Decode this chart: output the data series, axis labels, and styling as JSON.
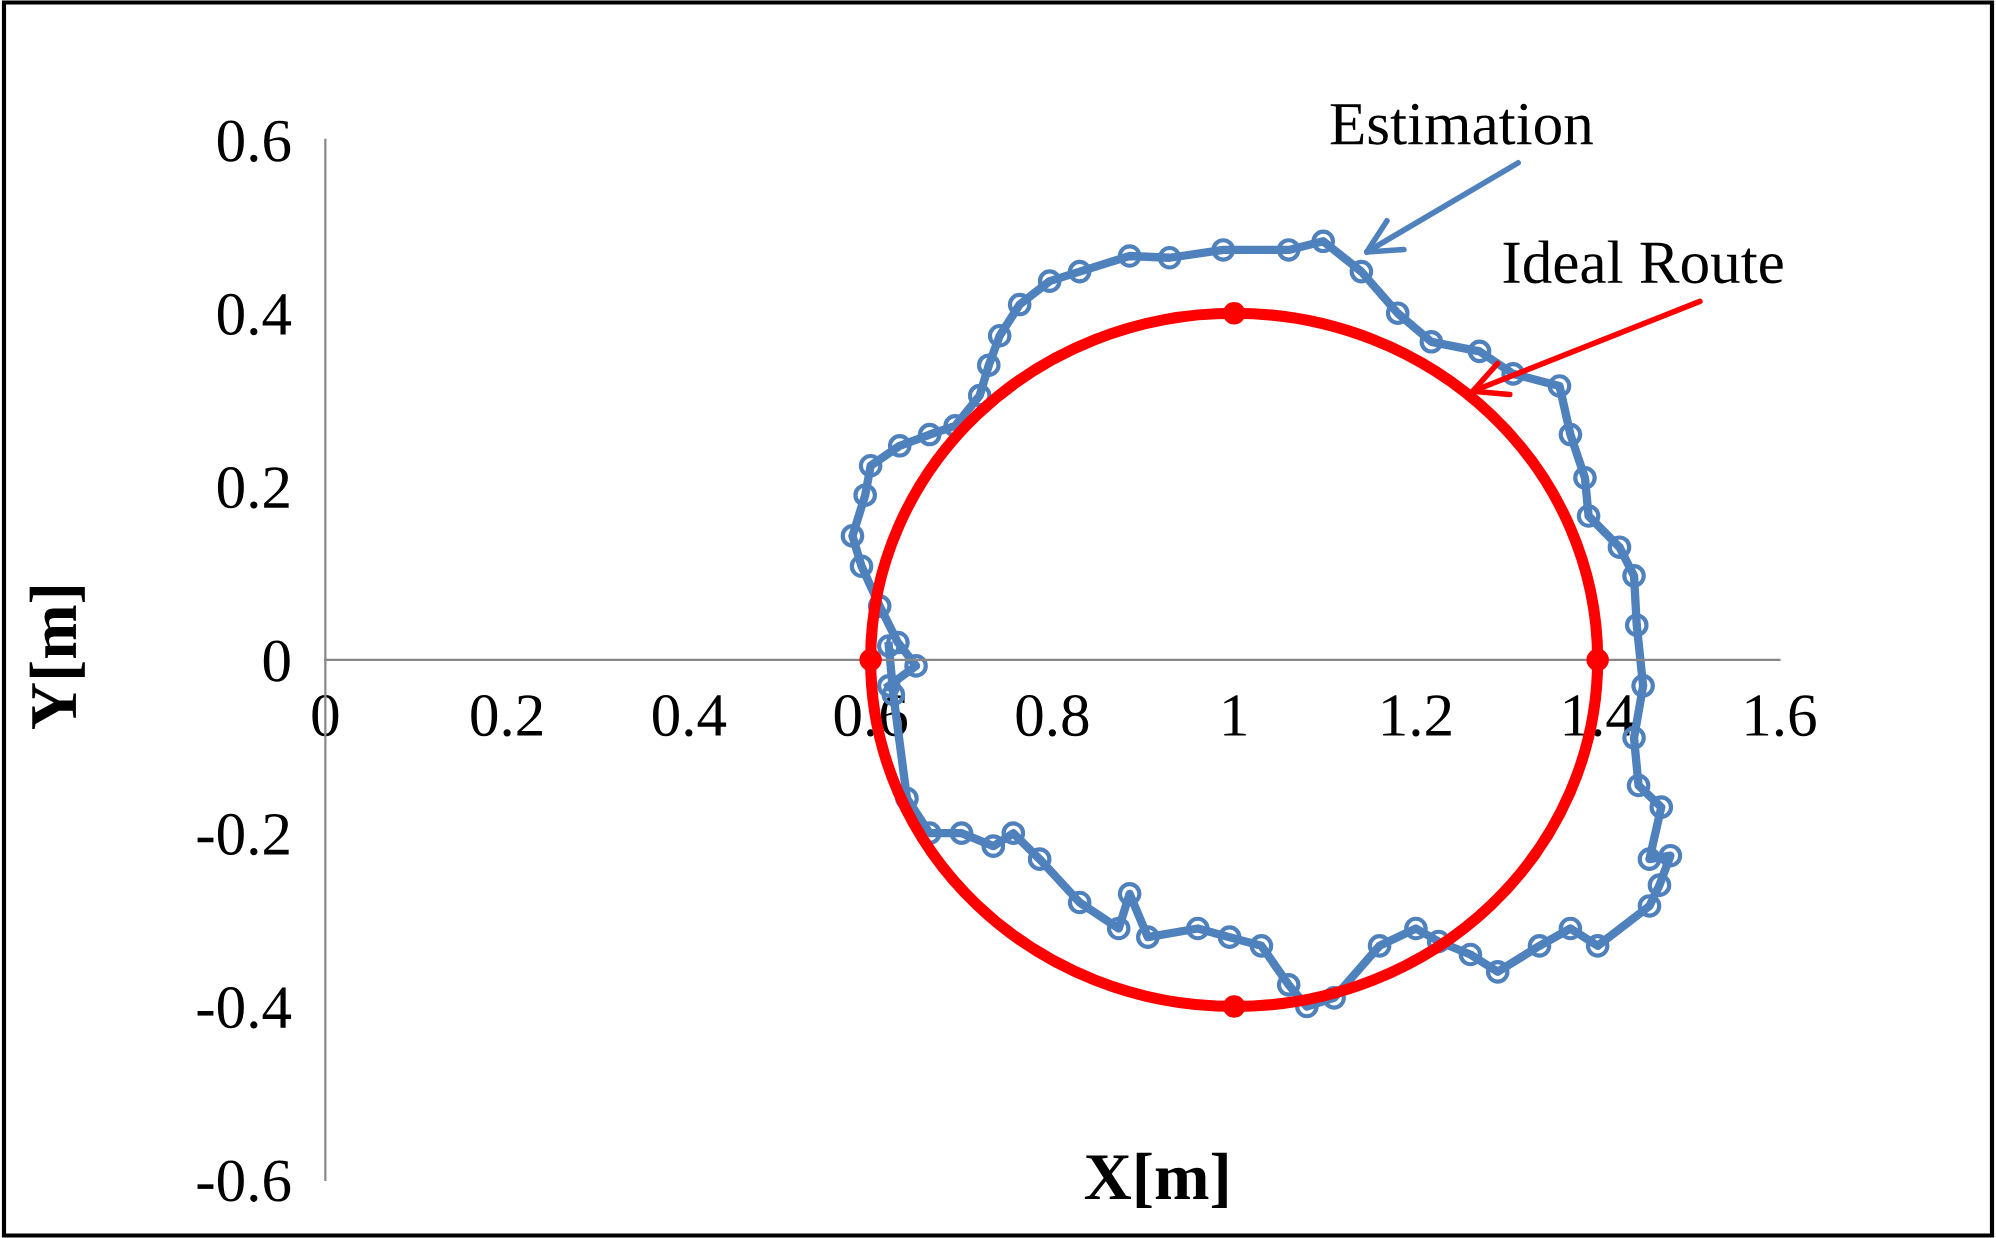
{
  "chart_data": {
    "type": "line",
    "xlabel": "X[m]",
    "ylabel": "Y[m]",
    "xlim": [
      0,
      1.6
    ],
    "ylim": [
      -0.6,
      0.6
    ],
    "xticks": [
      0,
      0.2,
      0.4,
      0.6,
      0.8,
      1,
      1.2,
      1.4,
      1.6
    ],
    "yticks": [
      -0.6,
      -0.4,
      -0.2,
      0,
      0.2,
      0.4,
      0.6
    ],
    "grid": false,
    "legend": false,
    "series": [
      {
        "color": "#4f81bd",
        "marker": "circle",
        "line_style": "solid",
        "x": [
          0.62,
          0.625,
          0.64,
          0.665,
          0.7,
          0.735,
          0.757,
          0.786,
          0.83,
          0.873,
          0.885,
          0.905,
          0.96,
          0.995,
          1.03,
          1.06,
          1.08,
          1.11,
          1.16,
          1.2,
          1.225,
          1.26,
          1.29,
          1.336,
          1.37,
          1.4,
          1.457,
          1.468,
          1.48,
          1.457,
          1.47,
          1.445,
          1.44,
          1.45,
          1.443,
          1.44,
          1.424,
          1.39,
          1.386,
          1.37,
          1.358,
          1.307,
          1.27,
          1.217,
          1.18,
          1.14,
          1.098,
          1.06,
          0.988,
          0.929,
          0.885,
          0.83,
          0.797,
          0.764,
          0.742,
          0.73,
          0.72,
          0.693,
          0.665,
          0.632,
          0.6,
          0.594,
          0.58,
          0.59,
          0.61,
          0.63,
          0.65,
          0.62
        ],
        "values": [
          0.016,
          -0.04,
          -0.16,
          -0.2,
          -0.2,
          -0.215,
          -0.2,
          -0.23,
          -0.28,
          -0.31,
          -0.27,
          -0.32,
          -0.31,
          -0.32,
          -0.33,
          -0.375,
          -0.4,
          -0.39,
          -0.33,
          -0.31,
          -0.325,
          -0.34,
          -0.36,
          -0.33,
          -0.31,
          -0.33,
          -0.284,
          -0.26,
          -0.226,
          -0.23,
          -0.17,
          -0.145,
          -0.09,
          -0.03,
          0.04,
          0.097,
          0.13,
          0.166,
          0.21,
          0.26,
          0.316,
          0.33,
          0.356,
          0.367,
          0.4,
          0.448,
          0.483,
          0.473,
          0.473,
          0.464,
          0.466,
          0.448,
          0.437,
          0.41,
          0.374,
          0.34,
          0.305,
          0.27,
          0.26,
          0.247,
          0.224,
          0.19,
          0.143,
          0.108,
          0.062,
          0.02,
          -0.007,
          -0.03
        ]
      },
      {
        "type": "scatter",
        "color": "#ff0000",
        "marker": "circle",
        "x": [
          1.4,
          1,
          0.6,
          1
        ],
        "values": [
          0,
          0.4,
          0,
          -0.4
        ]
      }
    ],
    "annotations": [
      {
        "text": "Estimation",
        "x": 1.14,
        "y": 0.467
      },
      "Ideal Route"
    ]
  }
}
